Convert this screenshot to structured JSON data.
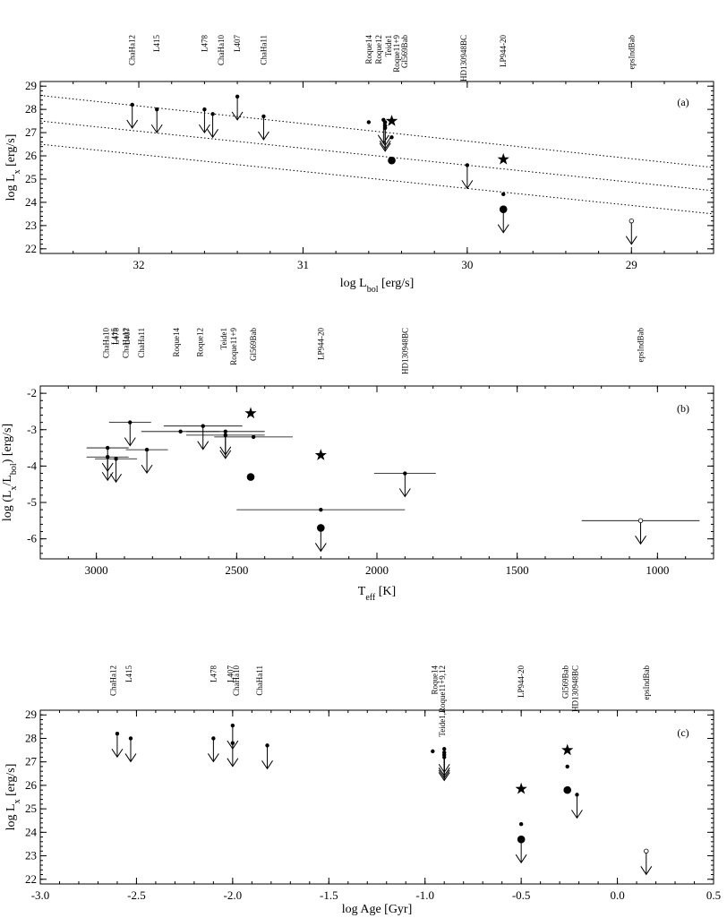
{
  "chart_data": [
    {
      "type": "scatter",
      "panel_label": "(a)",
      "xlabel": "log L_bol [erg/s]",
      "ylabel": "log L_x [erg/s]",
      "xlim": [
        32.6,
        28.5
      ],
      "ylim": [
        21.8,
        29.2
      ],
      "xticks": [
        32,
        31,
        30,
        29
      ],
      "yticks": [
        22,
        23,
        24,
        25,
        26,
        27,
        28,
        29
      ],
      "grid": false,
      "source_labels": [
        {
          "text": "ChaHa12",
          "x": 32.04
        },
        {
          "text": "L415",
          "x": 31.89
        },
        {
          "text": "L478",
          "x": 31.6
        },
        {
          "text": "ChaHa10",
          "x": 31.5
        },
        {
          "text": "L407",
          "x": 31.4
        },
        {
          "text": "ChaHa11",
          "x": 31.24
        },
        {
          "text": "Roque14",
          "x": 30.6
        },
        {
          "text": "Roque12",
          "x": 30.54
        },
        {
          "text": "Teide1",
          "x": 30.48
        },
        {
          "text": "Roque11+9",
          "x": 30.43
        },
        {
          "text": "Gl569Bab",
          "x": 30.38
        },
        {
          "text": "HD130948BC",
          "x": 30.02
        },
        {
          "text": "LP944-20",
          "x": 29.78
        },
        {
          "text": "epsIndBab",
          "x": 29.0
        }
      ],
      "saturation_lines": [
        {
          "x": [
            32.6,
            28.5
          ],
          "y": [
            28.6,
            25.5
          ]
        },
        {
          "x": [
            32.6,
            28.5
          ],
          "y": [
            27.5,
            24.5
          ]
        },
        {
          "x": [
            32.6,
            28.5
          ],
          "y": [
            26.5,
            23.5
          ]
        }
      ],
      "points": [
        {
          "x": 32.04,
          "y": 28.2,
          "marker": "dot",
          "upper_limit": true
        },
        {
          "x": 31.89,
          "y": 28.0,
          "marker": "dot",
          "upper_limit": true
        },
        {
          "x": 31.6,
          "y": 28.0,
          "marker": "dot",
          "upper_limit": true
        },
        {
          "x": 31.55,
          "y": 27.8,
          "marker": "dot",
          "upper_limit": true
        },
        {
          "x": 31.4,
          "y": 28.55,
          "marker": "dot",
          "upper_limit": true
        },
        {
          "x": 31.24,
          "y": 27.7,
          "marker": "dot",
          "upper_limit": true
        },
        {
          "x": 30.6,
          "y": 27.45,
          "marker": "dot",
          "upper_limit": false
        },
        {
          "x": 30.51,
          "y": 27.55,
          "marker": "dot",
          "upper_limit": true
        },
        {
          "x": 30.5,
          "y": 27.45,
          "marker": "dot",
          "upper_limit": true
        },
        {
          "x": 30.5,
          "y": 27.3,
          "marker": "dot",
          "upper_limit": true
        },
        {
          "x": 30.5,
          "y": 27.2,
          "marker": "dot",
          "upper_limit": true
        },
        {
          "x": 30.46,
          "y": 26.8,
          "marker": "dot",
          "upper_limit": false
        },
        {
          "x": 30.46,
          "y": 27.5,
          "marker": "star",
          "upper_limit": false
        },
        {
          "x": 30.46,
          "y": 25.8,
          "marker": "bigdot",
          "upper_limit": false
        },
        {
          "x": 30.0,
          "y": 25.6,
          "marker": "dot",
          "upper_limit": true
        },
        {
          "x": 29.78,
          "y": 25.85,
          "marker": "star",
          "upper_limit": false
        },
        {
          "x": 29.78,
          "y": 24.35,
          "marker": "dot",
          "upper_limit": false
        },
        {
          "x": 29.78,
          "y": 23.7,
          "marker": "bigdot",
          "upper_limit": true
        },
        {
          "x": 29.0,
          "y": 23.2,
          "marker": "open",
          "upper_limit": true
        }
      ]
    },
    {
      "type": "scatter",
      "panel_label": "(b)",
      "xlabel": "T_eff [K]",
      "ylabel": "log (L_x/L_bol) [erg/s]",
      "xlim": [
        3200,
        800
      ],
      "ylim": [
        -6.55,
        -1.8
      ],
      "xticks": [
        3000,
        2500,
        2000,
        1500,
        1000
      ],
      "yticks": [
        -6,
        -5,
        -4,
        -3,
        -2
      ],
      "grid": false,
      "source_labels": [
        {
          "text": "ChaHa10",
          "x": 2965
        },
        {
          "text": "L415",
          "x": 2935
        },
        {
          "text": "L478",
          "x": 2930
        },
        {
          "text": "ChaHa12",
          "x": 2895
        },
        {
          "text": "L407",
          "x": 2890
        },
        {
          "text": "ChaHa11",
          "x": 2840
        },
        {
          "text": "Roque14",
          "x": 2715
        },
        {
          "text": "Roque12",
          "x": 2630
        },
        {
          "text": "Teide1",
          "x": 2545
        },
        {
          "text": "Roque11+9",
          "x": 2510
        },
        {
          "text": "Gl569Bab",
          "x": 2440
        },
        {
          "text": "LP944-20",
          "x": 2200
        },
        {
          "text": "HD130948BC",
          "x": 1900
        },
        {
          "text": "epsIndBab",
          "x": 1060
        }
      ],
      "points": [
        {
          "x": 2960,
          "y": -3.5,
          "xerr": 75,
          "marker": "dot",
          "upper_limit": true
        },
        {
          "x": 2960,
          "y": -3.75,
          "xerr": 75,
          "marker": "dot",
          "upper_limit": true
        },
        {
          "x": 2930,
          "y": -3.8,
          "xerr": 75,
          "marker": "dot",
          "upper_limit": true
        },
        {
          "x": 2880,
          "y": -2.8,
          "xerr": 75,
          "marker": "dot",
          "upper_limit": true
        },
        {
          "x": 2820,
          "y": -3.55,
          "xerr": 75,
          "marker": "dot",
          "upper_limit": true
        },
        {
          "x": 2700,
          "y": -3.05,
          "xerr": 140,
          "marker": "dot",
          "upper_limit": false
        },
        {
          "x": 2620,
          "y": -2.9,
          "xerr": 140,
          "marker": "dot",
          "upper_limit": true
        },
        {
          "x": 2540,
          "y": -3.05,
          "xerr": 140,
          "marker": "dot",
          "upper_limit": true
        },
        {
          "x": 2540,
          "y": -3.15,
          "xerr": 140,
          "marker": "dot",
          "upper_limit": true
        },
        {
          "x": 2440,
          "y": -3.2,
          "xerr": 140,
          "marker": "dot",
          "upper_limit": false
        },
        {
          "x": 2450,
          "y": -2.55,
          "marker": "star",
          "upper_limit": false
        },
        {
          "x": 2450,
          "y": -4.3,
          "marker": "bigdot",
          "upper_limit": false
        },
        {
          "x": 2200,
          "y": -3.7,
          "marker": "star",
          "upper_limit": false
        },
        {
          "x": 2200,
          "y": -5.2,
          "xerr": 300,
          "marker": "dot",
          "upper_limit": false
        },
        {
          "x": 2200,
          "y": -5.7,
          "marker": "bigdot",
          "upper_limit": true
        },
        {
          "x": 1900,
          "y": -4.2,
          "xerr": 110,
          "marker": "dot",
          "upper_limit": true
        },
        {
          "x": 1060,
          "y": -5.5,
          "xerr": 210,
          "marker": "open",
          "upper_limit": true
        }
      ]
    },
    {
      "type": "scatter",
      "panel_label": "(c)",
      "xlabel": "log Age [Gyr]",
      "ylabel": "log L_x [erg/s]",
      "xlim": [
        -3.0,
        0.5
      ],
      "ylim": [
        21.8,
        29.2
      ],
      "xticks": [
        -3.0,
        -2.5,
        -2.0,
        -1.5,
        -1.0,
        -0.5,
        0.0,
        0.5
      ],
      "xtick_labels": [
        "-3.0",
        "-2.5",
        "-2.0",
        "-1.5",
        "-1.0",
        "-0.5",
        "0.0",
        "0.5"
      ],
      "yticks": [
        22,
        23,
        24,
        25,
        26,
        27,
        28,
        29
      ],
      "grid": false,
      "source_labels": [
        {
          "text": "ChaHa12",
          "x": -2.62
        },
        {
          "text": "L415",
          "x": -2.54
        },
        {
          "text": "L478",
          "x": -2.1
        },
        {
          "text": "L407",
          "x": -2.01
        },
        {
          "text": "ChaHa10",
          "x": -1.98
        },
        {
          "text": "ChaHa11",
          "x": -1.86
        },
        {
          "text": "Roque14",
          "x": -0.95
        },
        {
          "text": "Teide1,Roque11+9,12",
          "x": -0.91
        },
        {
          "text": "LP944-20",
          "x": -0.5
        },
        {
          "text": "Gl569Bab",
          "x": -0.27
        },
        {
          "text": "HD130948BC",
          "x": -0.22
        },
        {
          "text": "epsIndBab",
          "x": 0.15
        }
      ],
      "points": [
        {
          "x": -2.6,
          "y": 28.2,
          "marker": "dot",
          "upper_limit": true
        },
        {
          "x": -2.53,
          "y": 28.0,
          "marker": "dot",
          "upper_limit": true
        },
        {
          "x": -2.1,
          "y": 28.0,
          "marker": "dot",
          "upper_limit": true
        },
        {
          "x": -2.0,
          "y": 28.55,
          "marker": "dot",
          "upper_limit": true
        },
        {
          "x": -2.0,
          "y": 27.8,
          "marker": "dot",
          "upper_limit": true
        },
        {
          "x": -1.82,
          "y": 27.7,
          "marker": "dot",
          "upper_limit": true
        },
        {
          "x": -0.96,
          "y": 27.45,
          "marker": "dot",
          "upper_limit": false
        },
        {
          "x": -0.9,
          "y": 27.55,
          "marker": "dot",
          "upper_limit": true
        },
        {
          "x": -0.9,
          "y": 27.4,
          "marker": "dot",
          "upper_limit": true
        },
        {
          "x": -0.9,
          "y": 27.3,
          "marker": "dot",
          "upper_limit": true
        },
        {
          "x": -0.9,
          "y": 27.2,
          "marker": "dot",
          "upper_limit": true
        },
        {
          "x": -0.5,
          "y": 25.85,
          "marker": "star",
          "upper_limit": false
        },
        {
          "x": -0.5,
          "y": 24.35,
          "marker": "dot",
          "upper_limit": false
        },
        {
          "x": -0.5,
          "y": 23.7,
          "marker": "bigdot",
          "upper_limit": true
        },
        {
          "x": -0.26,
          "y": 27.5,
          "marker": "star",
          "upper_limit": false
        },
        {
          "x": -0.26,
          "y": 26.8,
          "marker": "dot",
          "upper_limit": false
        },
        {
          "x": -0.26,
          "y": 25.8,
          "marker": "bigdot",
          "upper_limit": false
        },
        {
          "x": -0.21,
          "y": 25.6,
          "marker": "dot",
          "upper_limit": true
        },
        {
          "x": 0.15,
          "y": 23.2,
          "marker": "open",
          "upper_limit": true
        }
      ]
    }
  ]
}
